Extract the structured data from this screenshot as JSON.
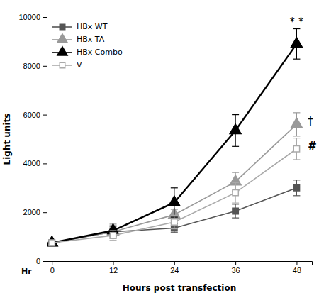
{
  "chart_data": {
    "type": "line",
    "x_label": "Hours post transfection",
    "y_label": "Light units",
    "x": [
      0,
      12,
      24,
      36,
      48
    ],
    "series": [
      {
        "name": "HBx WT",
        "color": "#555555",
        "marker": "square",
        "values": [
          750,
          1200,
          1350,
          2050,
          3000
        ],
        "errors": [
          80,
          200,
          180,
          280,
          320
        ]
      },
      {
        "name": "HBx TA",
        "color": "#999999",
        "marker": "triangle",
        "values": [
          750,
          1200,
          1900,
          3250,
          5600
        ],
        "errors": [
          80,
          280,
          220,
          380,
          480
        ]
      },
      {
        "name": "HBx Combo",
        "color": "#000000",
        "marker": "triangle",
        "values": [
          750,
          1250,
          2400,
          5350,
          8900
        ],
        "errors": [
          80,
          300,
          600,
          650,
          620
        ]
      },
      {
        "name": "V",
        "color": "#aaaaaa",
        "marker": "open-square",
        "values": [
          750,
          1050,
          1600,
          2800,
          4600
        ],
        "errors": [
          80,
          200,
          280,
          420,
          440
        ]
      }
    ],
    "xlim": [
      -1,
      51
    ],
    "ylim": [
      0,
      10000
    ],
    "xticks": [
      0,
      12,
      24,
      36,
      48
    ],
    "yticks": [
      0,
      2000,
      4000,
      6000,
      8000,
      10000
    ],
    "annotations": [
      {
        "text": "* *",
        "x": 48,
        "y": 9650
      },
      {
        "text": "†",
        "x": 50.2,
        "y": 5700
      },
      {
        "text": "#",
        "x": 50.2,
        "y": 4700
      },
      {
        "text": "Hr"
      }
    ],
    "legend": "upper left",
    "grid": false
  }
}
